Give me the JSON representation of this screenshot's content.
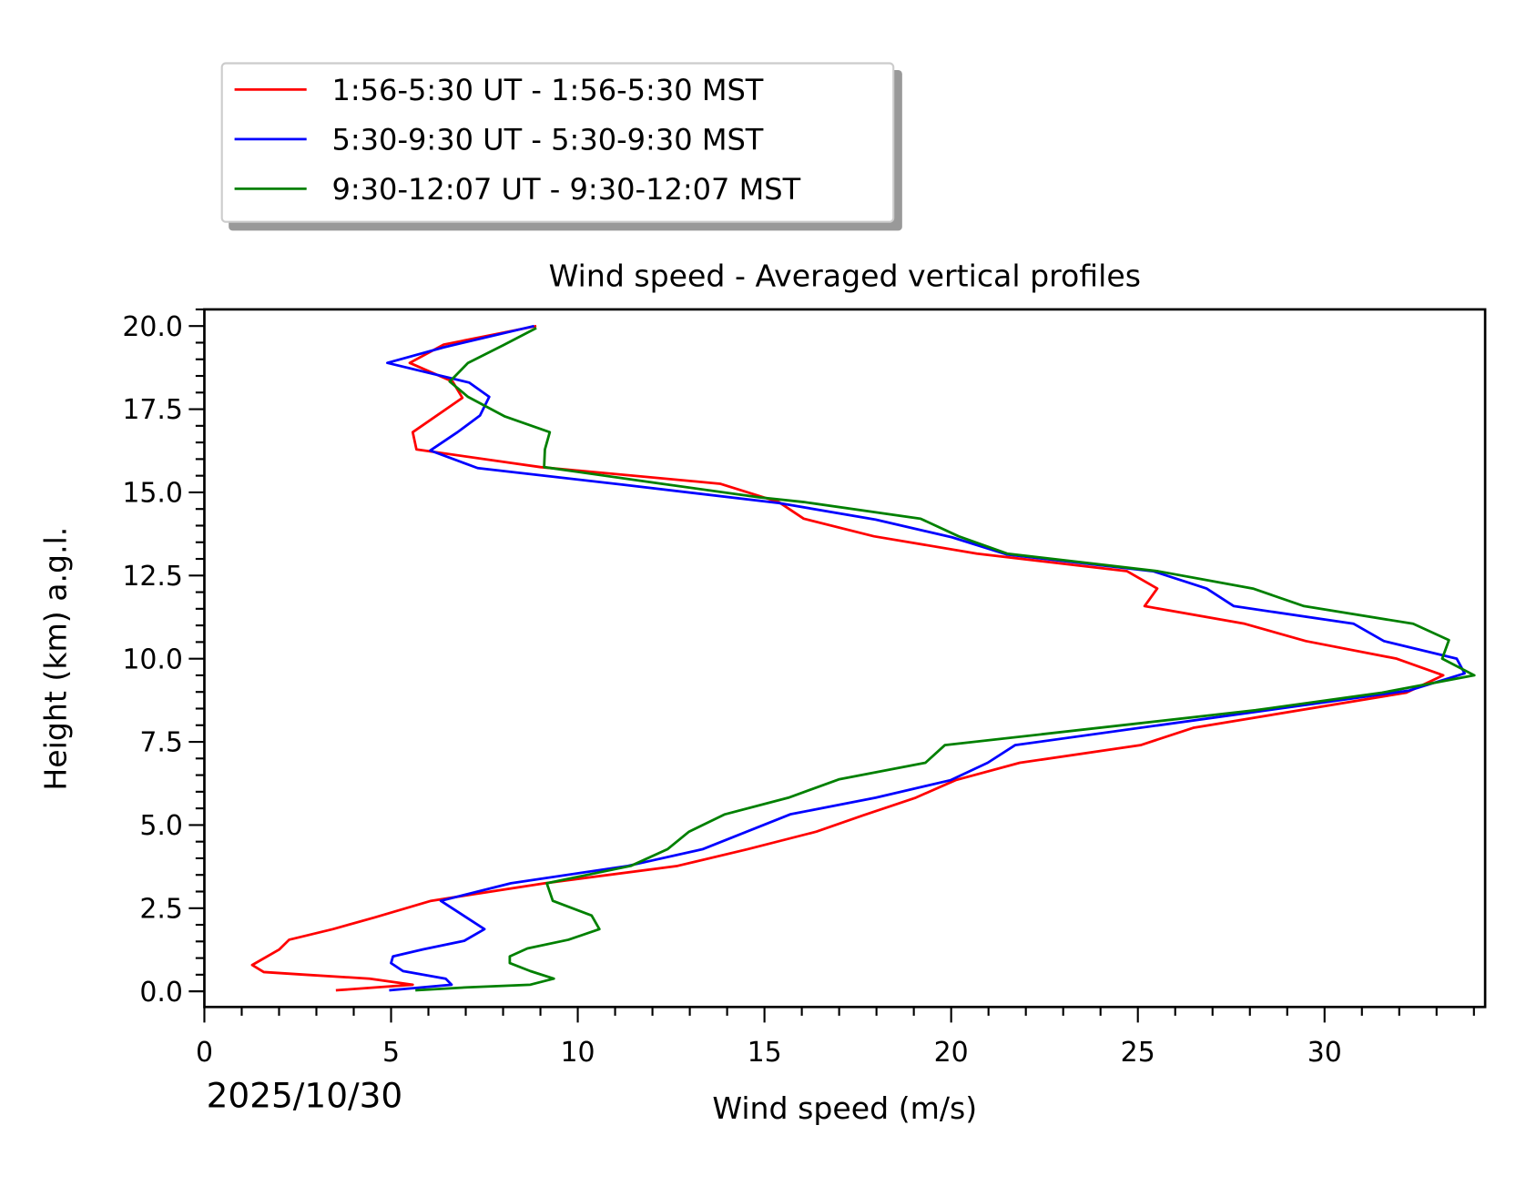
{
  "chart_data": {
    "type": "line",
    "title": "Wind speed - Averaged vertical profiles",
    "xlabel": "Wind speed (m/s)",
    "ylabel": "Height (km) a.g.l.",
    "date_label": "2025/10/30",
    "xlim": [
      0,
      34.3
    ],
    "ylim": [
      -0.47,
      20.5
    ],
    "xticks": [
      "0",
      "5",
      "10",
      "15",
      "20",
      "25",
      "30"
    ],
    "yticks": [
      "0.0",
      "2.5",
      "5.0",
      "7.5",
      "10.0",
      "12.5",
      "15.0",
      "17.5",
      "20.0"
    ],
    "grid": false,
    "legend_placement": "above-top-left",
    "series": [
      {
        "name": "1:56-5:30 UT - 1:56-5:30 MST",
        "color": "#ff0000",
        "points": [
          [
            8.89,
            20.0
          ],
          [
            6.41,
            19.44
          ],
          [
            5.5,
            18.89
          ],
          [
            6.65,
            18.33
          ],
          [
            6.91,
            17.84
          ],
          [
            5.58,
            16.81
          ],
          [
            5.68,
            16.29
          ],
          [
            9.0,
            15.76
          ],
          [
            13.81,
            15.26
          ],
          [
            15.38,
            14.71
          ],
          [
            16.05,
            14.21
          ],
          [
            17.93,
            13.68
          ],
          [
            20.69,
            13.16
          ],
          [
            24.71,
            12.63
          ],
          [
            25.52,
            12.11
          ],
          [
            25.18,
            11.58
          ],
          [
            27.86,
            11.05
          ],
          [
            29.5,
            10.53
          ],
          [
            31.93,
            10.0
          ],
          [
            33.18,
            9.5
          ],
          [
            32.19,
            8.98
          ],
          [
            26.48,
            7.92
          ],
          [
            25.07,
            7.4
          ],
          [
            21.84,
            6.87
          ],
          [
            20.12,
            6.35
          ],
          [
            19.05,
            5.82
          ],
          [
            17.64,
            5.29
          ],
          [
            16.39,
            4.8
          ],
          [
            14.54,
            4.27
          ],
          [
            12.67,
            3.77
          ],
          [
            9.12,
            3.25
          ],
          [
            6.07,
            2.72
          ],
          [
            4.56,
            2.22
          ],
          [
            3.44,
            1.87
          ],
          [
            2.27,
            1.55
          ],
          [
            2.01,
            1.26
          ],
          [
            1.28,
            0.79
          ],
          [
            1.59,
            0.58
          ],
          [
            2.68,
            0.5
          ],
          [
            4.43,
            0.38
          ],
          [
            5.58,
            0.2
          ],
          [
            3.52,
            0.03
          ]
        ]
      },
      {
        "name": "5:30-9:30 UT - 5:30-9:30 MST",
        "color": "#0000ff",
        "points": [
          [
            8.83,
            20.0
          ],
          [
            6.41,
            19.36
          ],
          [
            4.9,
            18.89
          ],
          [
            7.09,
            18.3
          ],
          [
            7.63,
            17.87
          ],
          [
            7.38,
            17.31
          ],
          [
            6.78,
            16.81
          ],
          [
            6.05,
            16.26
          ],
          [
            7.32,
            15.73
          ],
          [
            11.21,
            15.23
          ],
          [
            15.38,
            14.68
          ],
          [
            17.98,
            14.18
          ],
          [
            20.02,
            13.65
          ],
          [
            21.5,
            13.13
          ],
          [
            25.41,
            12.63
          ],
          [
            26.84,
            12.11
          ],
          [
            27.57,
            11.58
          ],
          [
            30.78,
            11.05
          ],
          [
            31.59,
            10.53
          ],
          [
            33.54,
            10.0
          ],
          [
            33.75,
            9.56
          ],
          [
            32.26,
            9.04
          ],
          [
            21.71,
            7.4
          ],
          [
            20.98,
            6.87
          ],
          [
            19.99,
            6.35
          ],
          [
            17.98,
            5.82
          ],
          [
            15.69,
            5.32
          ],
          [
            13.34,
            4.27
          ],
          [
            11.34,
            3.77
          ],
          [
            8.21,
            3.25
          ],
          [
            6.33,
            2.72
          ],
          [
            7.5,
            1.87
          ],
          [
            6.96,
            1.52
          ],
          [
            5.86,
            1.26
          ],
          [
            5.05,
            1.05
          ],
          [
            5.0,
            0.85
          ],
          [
            5.32,
            0.61
          ],
          [
            6.46,
            0.38
          ],
          [
            6.62,
            0.2
          ],
          [
            4.95,
            0.03
          ]
        ]
      },
      {
        "name": "9:30-12:07 UT - 9:30-12:07 MST",
        "color": "#008000",
        "points": [
          [
            8.89,
            19.94
          ],
          [
            8.0,
            19.42
          ],
          [
            7.06,
            18.89
          ],
          [
            6.57,
            18.33
          ],
          [
            7.06,
            17.87
          ],
          [
            8.05,
            17.28
          ],
          [
            9.25,
            16.81
          ],
          [
            9.12,
            16.29
          ],
          [
            9.1,
            15.76
          ],
          [
            12.25,
            15.26
          ],
          [
            14.86,
            14.85
          ],
          [
            16.05,
            14.71
          ],
          [
            19.18,
            14.21
          ],
          [
            20.2,
            13.68
          ],
          [
            21.5,
            13.16
          ],
          [
            25.54,
            12.63
          ],
          [
            28.08,
            12.11
          ],
          [
            29.45,
            11.58
          ],
          [
            32.37,
            11.05
          ],
          [
            33.33,
            10.56
          ],
          [
            33.15,
            10.0
          ],
          [
            34.01,
            9.5
          ],
          [
            31.54,
            8.98
          ],
          [
            28.15,
            8.45
          ],
          [
            19.83,
            7.4
          ],
          [
            19.31,
            6.87
          ],
          [
            16.99,
            6.37
          ],
          [
            15.64,
            5.82
          ],
          [
            13.94,
            5.32
          ],
          [
            12.98,
            4.8
          ],
          [
            12.4,
            4.27
          ],
          [
            11.42,
            3.77
          ],
          [
            9.17,
            3.25
          ],
          [
            9.33,
            2.72
          ],
          [
            10.37,
            2.28
          ],
          [
            10.58,
            1.87
          ],
          [
            9.75,
            1.55
          ],
          [
            8.65,
            1.29
          ],
          [
            8.18,
            1.05
          ],
          [
            8.18,
            0.85
          ],
          [
            8.73,
            0.61
          ],
          [
            9.36,
            0.38
          ],
          [
            8.73,
            0.2
          ],
          [
            7.04,
            0.12
          ],
          [
            5.65,
            0.03
          ]
        ]
      }
    ]
  }
}
